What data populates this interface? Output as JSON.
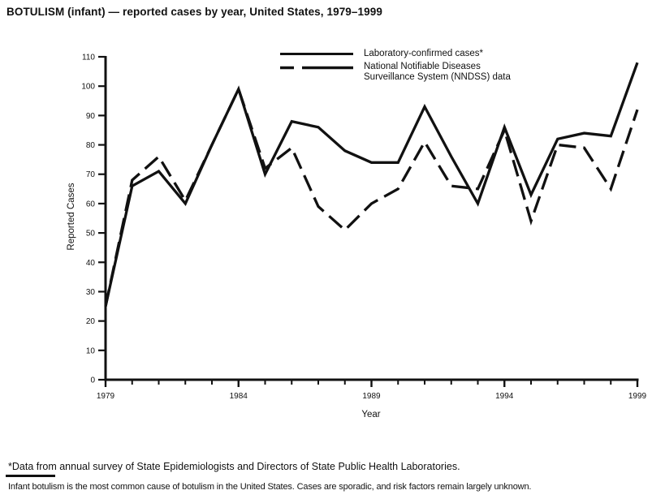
{
  "title": "BOTULISM (infant) — reported cases by year, United States, 1979–1999",
  "legend": {
    "series1": "Laboratory-confirmed cases*",
    "series2_line1": "National Notifiable Diseases",
    "series2_line2": "Surveillance System (NNDSS) data"
  },
  "footnotes": {
    "asterisk_note": "*Data from annual survey of State Epidemiologists and Directors of State Public Health Laboratories.",
    "bottom_note": "Infant botulism is the most common cause of botulism in the United States. Cases are sporadic, and risk factors remain largely unknown."
  },
  "chart_data": {
    "type": "line",
    "title": "BOTULISM (infant) — reported cases by year, United States, 1979–1999",
    "xlabel": "Year",
    "ylabel": "Reported Cases",
    "x": [
      1979,
      1980,
      1981,
      1982,
      1983,
      1984,
      1985,
      1986,
      1987,
      1988,
      1989,
      1990,
      1991,
      1992,
      1993,
      1994,
      1995,
      1996,
      1997,
      1998,
      1999
    ],
    "series": [
      {
        "name": "Laboratory-confirmed cases*",
        "style": "solid",
        "values": [
          25,
          66,
          71,
          60,
          80,
          99,
          70,
          88,
          86,
          78,
          74,
          74,
          93,
          76,
          60,
          86,
          63,
          82,
          84,
          83,
          108
        ]
      },
      {
        "name": "National Notifiable Diseases Surveillance System (NNDSS) data",
        "style": "dashed",
        "values": [
          25,
          68,
          76,
          61,
          80,
          99,
          72,
          79,
          59,
          51,
          60,
          65,
          81,
          66,
          65,
          85,
          54,
          80,
          79,
          65,
          92
        ]
      }
    ],
    "ylim": [
      0,
      110
    ],
    "ytick_step": 10,
    "xticks_labeled": [
      1979,
      1984,
      1989,
      1994,
      1999
    ],
    "grid": false,
    "legend_position": "top-center",
    "line_color": "#111111"
  }
}
